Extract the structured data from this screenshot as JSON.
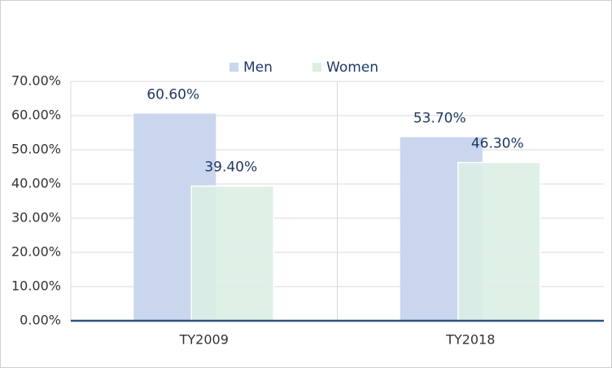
{
  "chart_data": {
    "type": "bar",
    "categories": [
      "TY2009",
      "TY2018"
    ],
    "series": [
      {
        "name": "Men",
        "color": "#c9d6ed",
        "values": [
          60.6,
          53.7
        ],
        "value_labels": [
          "60.60%",
          "53.70%"
        ]
      },
      {
        "name": "Women",
        "color": "#dbeee4",
        "values": [
          39.4,
          46.3
        ],
        "value_labels": [
          "39.40%",
          "46.30%"
        ]
      }
    ],
    "ylim": [
      0,
      70
    ],
    "yticks": [
      {
        "value": 0,
        "label": "0.00%"
      },
      {
        "value": 10,
        "label": "10.00%"
      },
      {
        "value": 20,
        "label": "20.00%"
      },
      {
        "value": 30,
        "label": "30.00%"
      },
      {
        "value": 40,
        "label": "40.00%"
      },
      {
        "value": 50,
        "label": "50.00%"
      },
      {
        "value": 60,
        "label": "60.00%"
      },
      {
        "value": 70,
        "label": "70.00%"
      }
    ],
    "grid": true,
    "legend": "top"
  }
}
